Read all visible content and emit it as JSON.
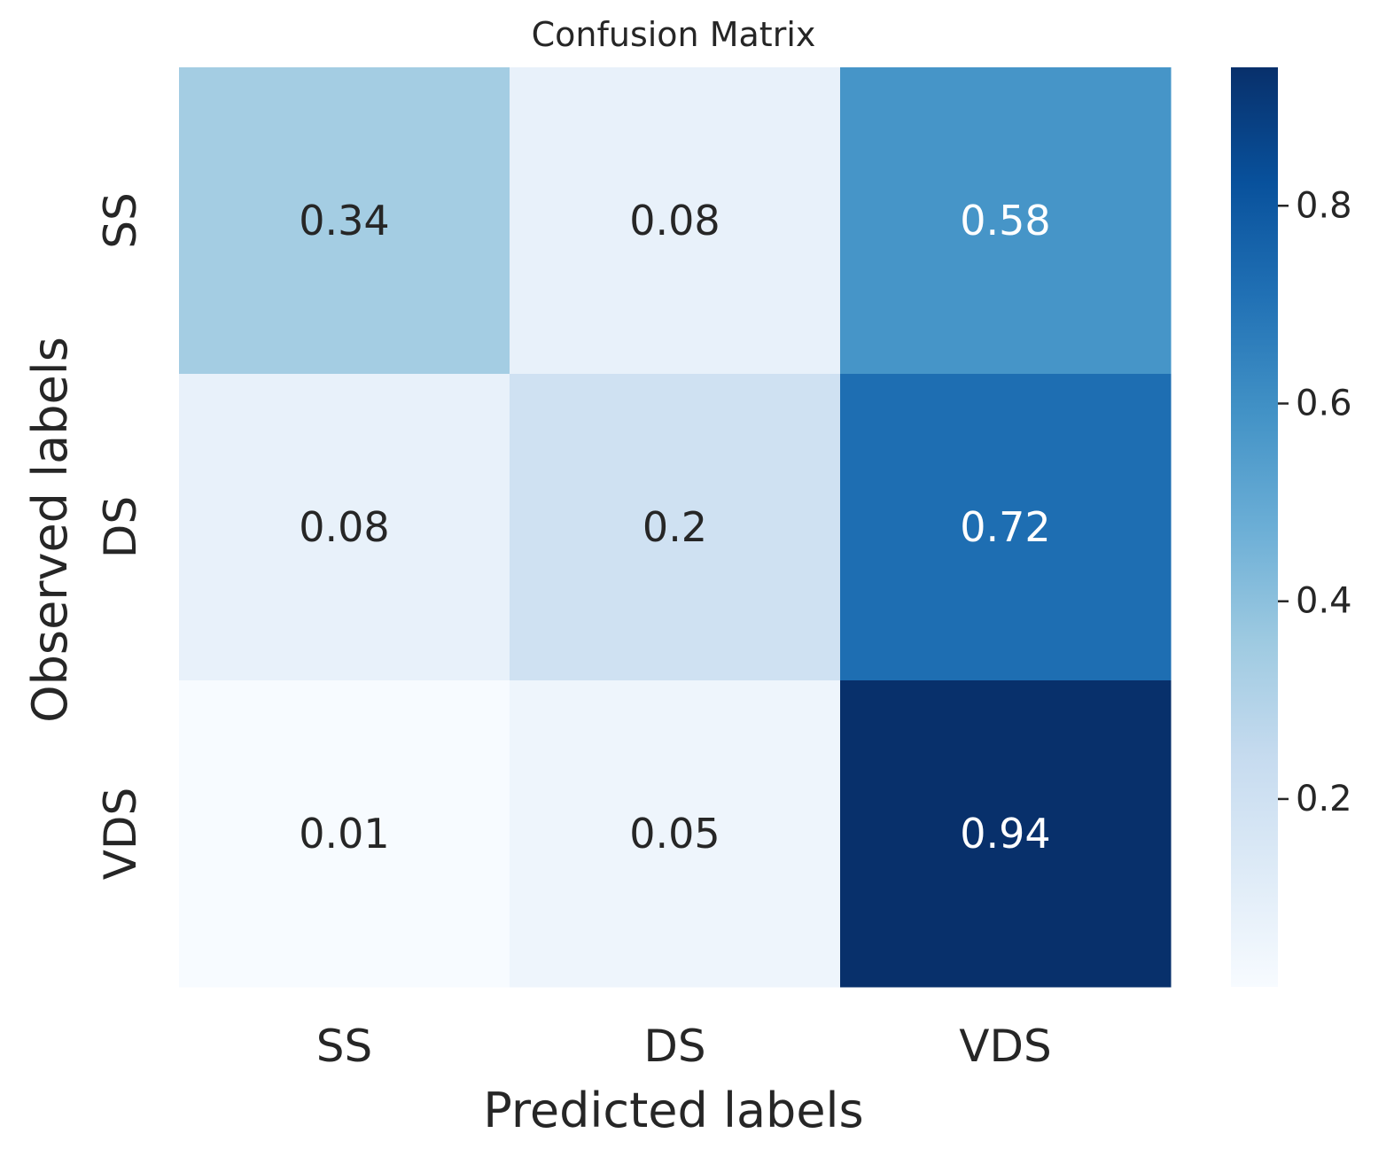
{
  "chart_data": {
    "type": "heatmap",
    "title": "Confusion Matrix",
    "xlabel": "Predicted labels",
    "ylabel": "Observed labels",
    "x_categories": [
      "SS",
      "DS",
      "VDS"
    ],
    "y_categories": [
      "SS",
      "DS",
      "VDS"
    ],
    "values": [
      [
        0.34,
        0.08,
        0.58
      ],
      [
        0.08,
        0.2,
        0.72
      ],
      [
        0.01,
        0.05,
        0.94
      ]
    ],
    "cell_labels": [
      [
        "0.34",
        "0.08",
        "0.58"
      ],
      [
        "0.08",
        "0.2",
        "0.72"
      ],
      [
        "0.01",
        "0.05",
        "0.94"
      ]
    ],
    "colormap": "Blues",
    "colorbar": {
      "range": [
        0.01,
        0.94
      ],
      "ticks": [
        0.2,
        0.4,
        0.6,
        0.8
      ],
      "tick_labels": [
        "0.2",
        "0.4",
        "0.6",
        "0.8"
      ]
    },
    "grid": false
  }
}
